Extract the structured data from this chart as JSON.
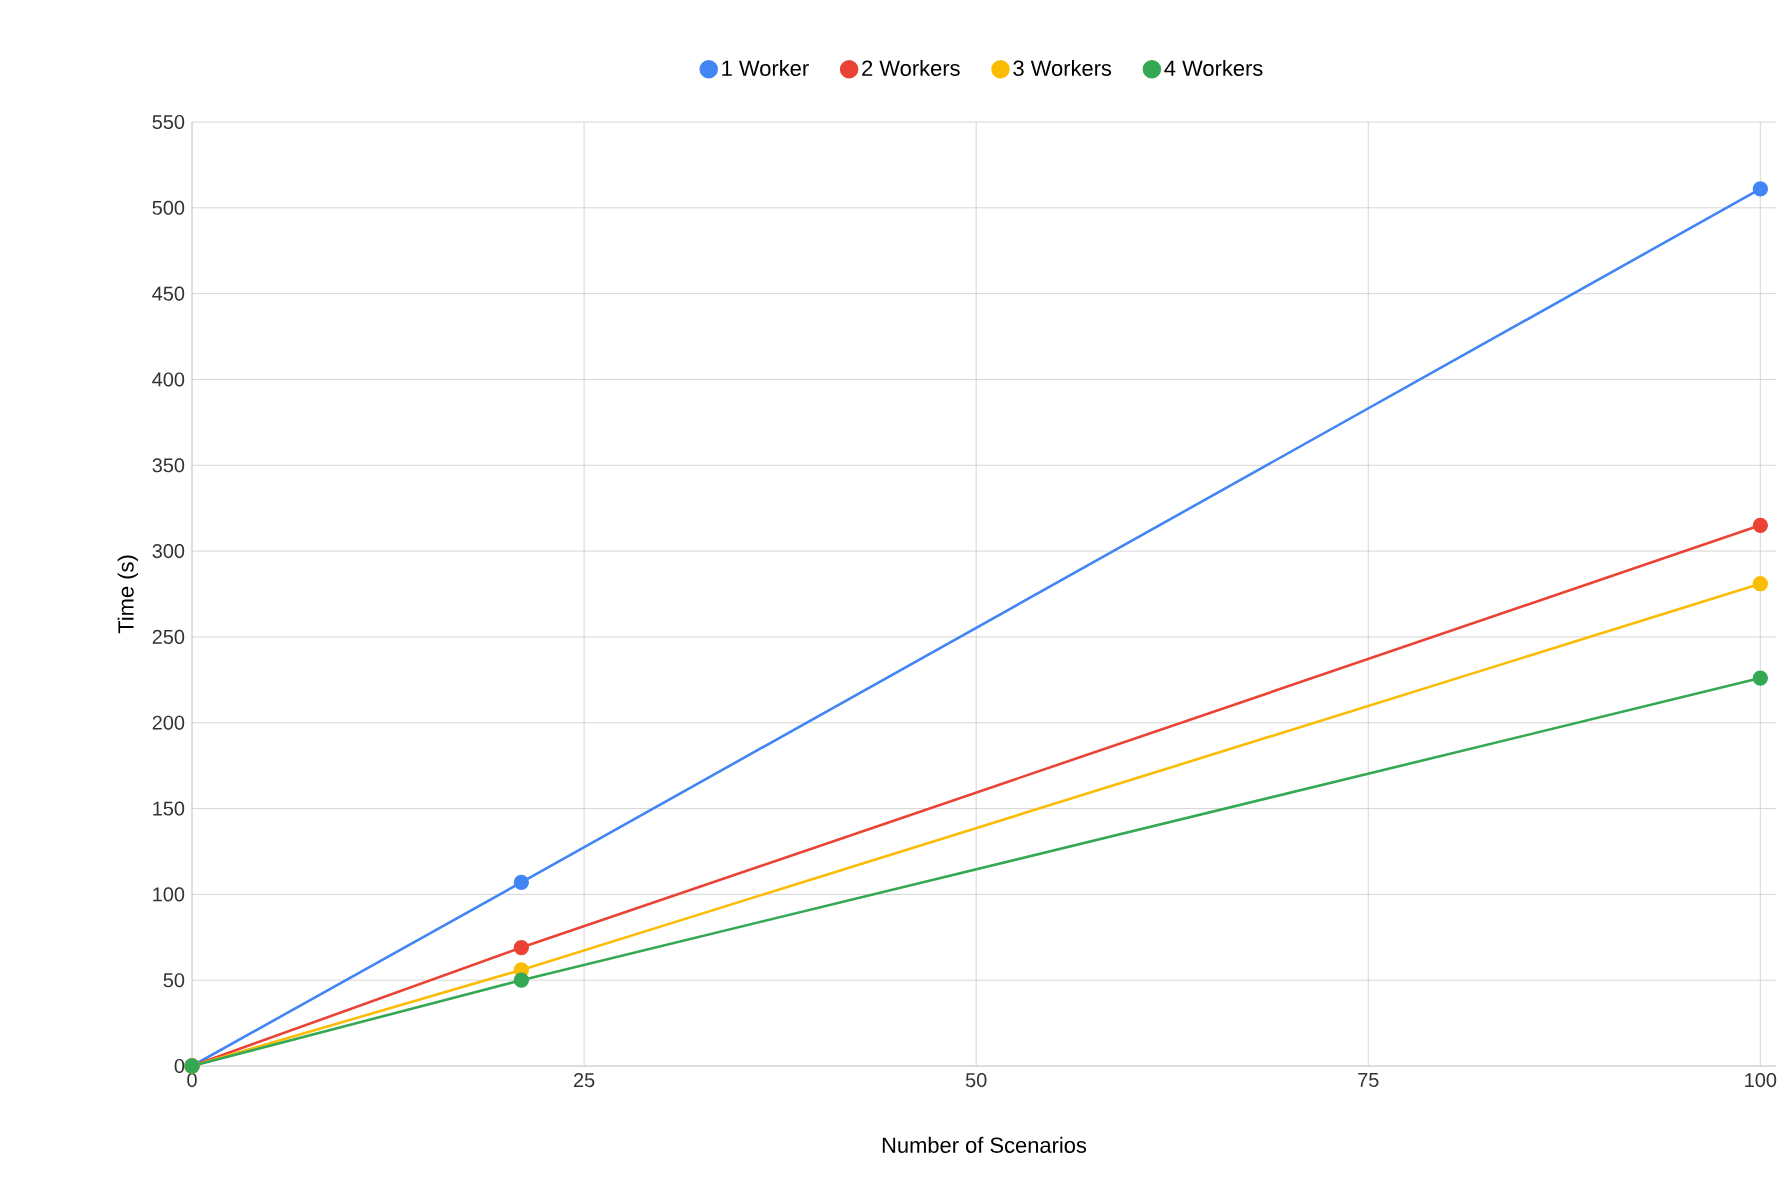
{
  "chart_data": {
    "type": "line",
    "xlabel": "Number of Scenarios",
    "ylabel": "Time (s)",
    "x": [
      0,
      21,
      100
    ],
    "series": [
      {
        "name": "1 Worker",
        "color": "#4285f4",
        "values": [
          0,
          107,
          511
        ]
      },
      {
        "name": "2 Workers",
        "color": "#ea4335",
        "values": [
          0,
          69,
          315
        ]
      },
      {
        "name": "3 Workers",
        "color": "#fbbc04",
        "values": [
          0,
          56,
          281
        ]
      },
      {
        "name": "4 Workers",
        "color": "#34a853",
        "values": [
          0,
          50,
          226
        ]
      }
    ],
    "xlim": [
      0,
      101
    ],
    "ylim": [
      0,
      550
    ],
    "xticks": [
      0,
      25,
      50,
      75,
      100
    ],
    "yticks": [
      0,
      50,
      100,
      150,
      200,
      250,
      300,
      350,
      400,
      450,
      500,
      550
    ],
    "grid": true,
    "legend": "top",
    "marker": "circle",
    "line_style": "solid"
  }
}
